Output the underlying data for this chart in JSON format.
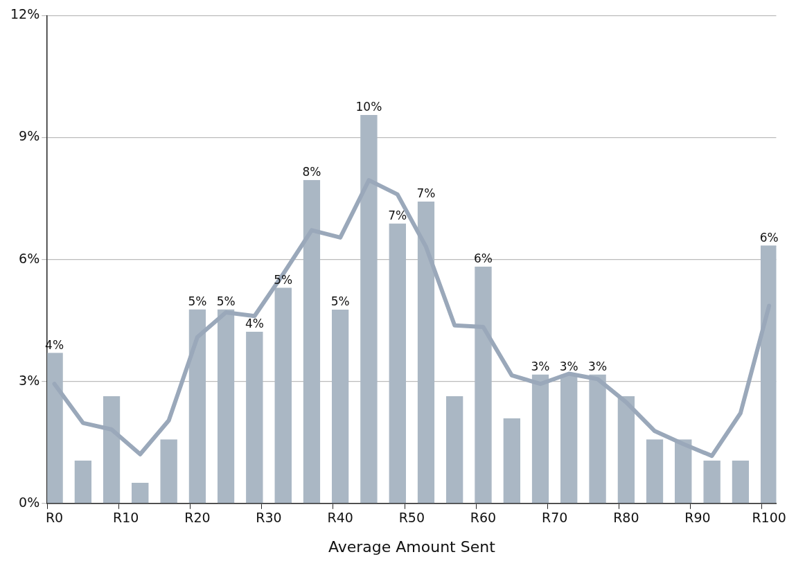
{
  "chart_data": {
    "type": "bar",
    "xlabel": "Average Amount Sent",
    "categories": [
      "R0",
      null,
      null,
      null,
      null,
      "R10",
      null,
      null,
      null,
      null,
      "R20",
      null,
      null,
      null,
      null,
      "R30",
      null,
      null,
      null,
      null,
      "R40",
      null,
      null,
      null,
      null,
      "R50",
      null,
      null,
      null,
      null,
      "R60",
      null,
      null,
      null,
      null,
      "R70",
      null,
      null,
      null,
      null,
      "R80",
      null,
      null,
      null,
      null,
      "R90",
      null,
      null,
      null,
      null,
      "R100"
    ],
    "series": [
      {
        "color": "#aab7c4",
        "values": [
          3.7,
          null,
          1.05,
          null,
          2.63,
          null,
          0.5,
          null,
          1.57,
          null,
          4.77,
          null,
          4.77,
          null,
          4.22,
          null,
          5.3,
          null,
          7.95,
          null,
          4.76,
          null,
          9.55,
          null,
          6.88,
          null,
          7.42,
          null,
          2.63,
          null,
          5.82,
          null,
          2.09,
          null,
          3.17,
          null,
          3.17,
          null,
          3.17,
          null,
          2.63,
          null,
          1.57,
          null,
          1.57,
          null,
          1.05,
          null,
          1.05,
          null,
          6.34
        ],
        "value_labels": [
          "4%",
          null,
          null,
          null,
          null,
          null,
          null,
          null,
          null,
          null,
          "5%",
          null,
          "5%",
          null,
          "4%",
          null,
          "5%",
          null,
          "8%",
          null,
          "5%",
          null,
          "10%",
          null,
          "7%",
          null,
          "7%",
          null,
          null,
          null,
          "6%",
          null,
          null,
          null,
          "3%",
          null,
          "3%",
          null,
          "3%",
          null,
          null,
          null,
          null,
          null,
          null,
          null,
          null,
          null,
          null,
          null,
          "6%"
        ]
      },
      {
        "type": "line",
        "color": "#9aa8ba",
        "values": [
          2.94,
          null,
          1.98,
          null,
          1.82,
          null,
          1.21,
          null,
          2.04,
          null,
          4.09,
          null,
          4.7,
          null,
          4.61,
          null,
          5.64,
          null,
          6.72,
          null,
          6.54,
          null,
          7.95,
          null,
          7.6,
          null,
          6.31,
          null,
          4.38,
          null,
          4.34,
          null,
          3.15,
          null,
          2.94,
          null,
          3.19,
          null,
          3.06,
          null,
          2.49,
          null,
          1.78,
          null,
          1.46,
          null,
          1.17,
          null,
          2.22,
          null,
          4.86
        ]
      }
    ],
    "ylim": [
      0,
      12
    ],
    "yticks": [
      {
        "value": 0,
        "label": "0%"
      },
      {
        "value": 3,
        "label": "3%"
      },
      {
        "value": 6,
        "label": "6%"
      },
      {
        "value": 9,
        "label": "9%"
      },
      {
        "value": 12,
        "label": "12%"
      }
    ],
    "grid": "y",
    "legend": false
  }
}
